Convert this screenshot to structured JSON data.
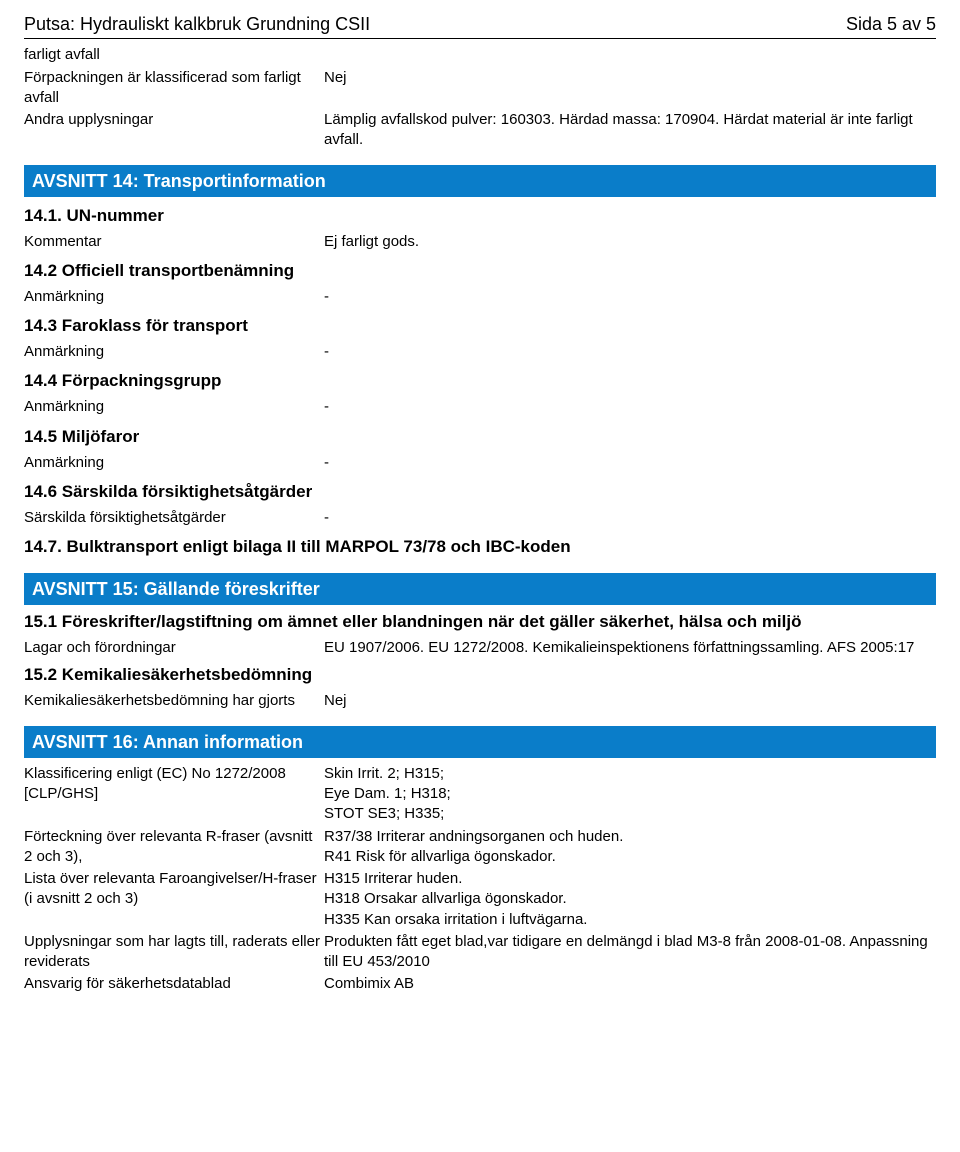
{
  "header": {
    "title_left": "Putsa: Hydrauliskt kalkbruk Grundning CSII",
    "title_right": "Sida 5 av 5"
  },
  "intro": {
    "row0": "farligt avfall",
    "row1_label": "Förpackningen är klassificerad som farligt avfall",
    "row1_value": "Nej",
    "row2_label": "Andra upplysningar",
    "row2_value": "Lämplig avfallskod pulver: 160303. Härdad massa: 170904. Härdat material är inte farligt avfall."
  },
  "section14": {
    "title": "AVSNITT 14: Transportinformation",
    "s1_head": "14.1. UN-nummer",
    "s1_label": "Kommentar",
    "s1_value": "Ej farligt gods.",
    "s2_head": "14.2 Officiell transportbenämning",
    "s2_label": "Anmärkning",
    "s2_value": "-",
    "s3_head": "14.3 Faroklass för transport",
    "s3_label": "Anmärkning",
    "s3_value": "-",
    "s4_head": "14.4 Förpackningsgrupp",
    "s4_label": "Anmärkning",
    "s4_value": "-",
    "s5_head": "14.5 Miljöfaror",
    "s5_label": "Anmärkning",
    "s5_value": "-",
    "s6_head": "14.6 Särskilda försiktighetsåtgärder",
    "s6_label": "Särskilda försiktighetsåtgärder",
    "s6_value": "-",
    "s7_head": "14.7. Bulktransport enligt bilaga II till MARPOL 73/78 och IBC-koden"
  },
  "section15": {
    "title": "AVSNITT 15: Gällande föreskrifter",
    "s1_head": "15.1 Föreskrifter/lagstiftning om ämnet eller blandningen när det gäller säkerhet, hälsa och miljö",
    "s1_label": "Lagar och förordningar",
    "s1_value": "EU 1907/2006. EU 1272/2008. Kemikalieinspektionens författningssamling. AFS 2005:17",
    "s2_head": "15.2 Kemikaliesäkerhetsbedömning",
    "s2_label": "Kemikaliesäkerhetsbedömning har gjorts",
    "s2_value": "Nej"
  },
  "section16": {
    "title": "AVSNITT 16: Annan information",
    "r1_label": "Klassificering enligt (EC) No 1272/2008 [CLP/GHS]",
    "r1_value": "Skin Irrit. 2; H315;\nEye Dam. 1; H318;\nSTOT SE3; H335;",
    "r2_label": "Förteckning över relevanta R-fraser (avsnitt 2 och 3),",
    "r2_value": "R37/38 Irriterar andningsorganen och huden.\nR41 Risk för allvarliga ögonskador.",
    "r3_label": "Lista över relevanta Faroangivelser/H-fraser (i avsnitt 2 och 3)",
    "r3_value": "H315 Irriterar huden.\nH318 Orsakar allvarliga ögonskador.\nH335 Kan orsaka irritation i luftvägarna.",
    "r4_label": "Upplysningar som har lagts till, raderats eller reviderats",
    "r4_value": "Produkten fått eget blad,var tidigare en delmängd i blad M3-8 från 2008-01-08. Anpassning till EU 453/2010",
    "r5_label": "Ansvarig för säkerhetsdatablad",
    "r5_value": "Combimix AB"
  }
}
